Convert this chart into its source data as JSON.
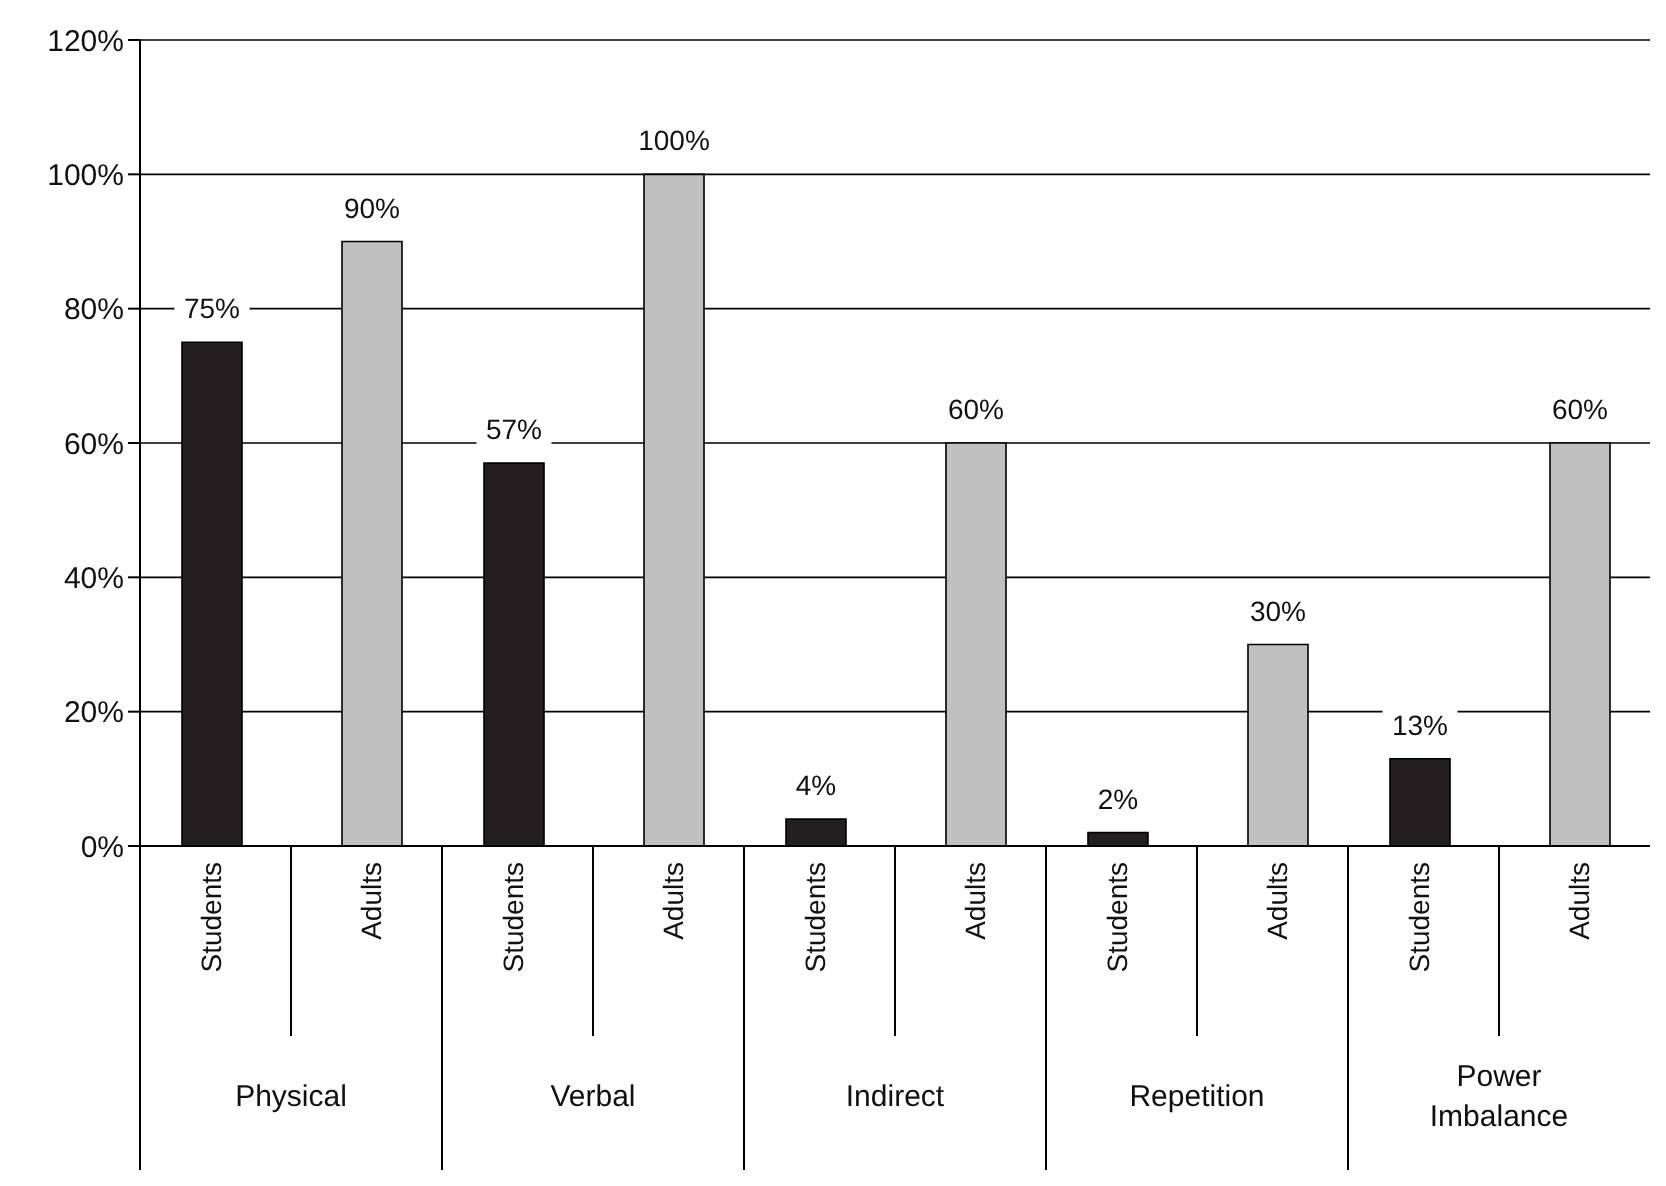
{
  "chart_data": {
    "type": "bar",
    "categories": [
      "Physical",
      "Verbal",
      "Indirect",
      "Repetition",
      "Power Imbalance"
    ],
    "series": [
      {
        "name": "Students",
        "color": "#231f20",
        "values": [
          75,
          57,
          4,
          2,
          13
        ],
        "value_labels": [
          "75%",
          "57%",
          "4%",
          "2%",
          "13%"
        ]
      },
      {
        "name": "Adults",
        "color": "#c0c0c0",
        "values": [
          90,
          100,
          60,
          30,
          60
        ],
        "value_labels": [
          "90%",
          "100%",
          "60%",
          "30%",
          "60%"
        ]
      }
    ],
    "ylim": [
      0,
      120
    ],
    "yticks": [
      {
        "value": 0,
        "label": "0%"
      },
      {
        "value": 20,
        "label": "20%"
      },
      {
        "value": 40,
        "label": "40%"
      },
      {
        "value": 60,
        "label": "60%"
      },
      {
        "value": 80,
        "label": "80%"
      },
      {
        "value": 100,
        "label": "100%"
      },
      {
        "value": 120,
        "label": "120%"
      }
    ],
    "grid": "y"
  }
}
